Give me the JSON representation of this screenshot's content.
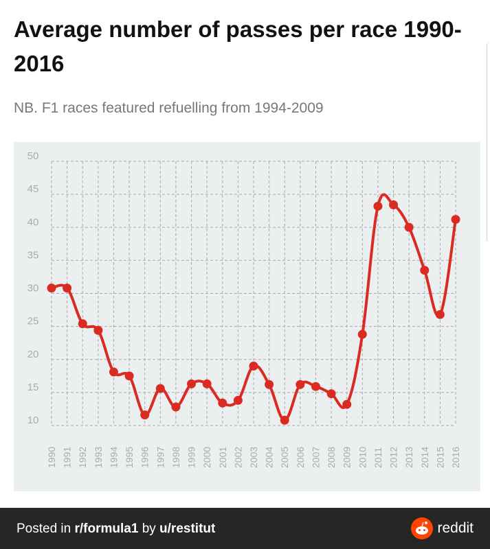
{
  "title": "Average number of passes per race 1990-2016",
  "subtitle": "NB. F1 races featured refuelling from 1994-2009",
  "footer": {
    "prefix": "Posted in ",
    "subreddit": "r/formula1",
    "by": " by ",
    "user": "u/restitut",
    "brand": "reddit"
  },
  "colors": {
    "line": "#d92b21",
    "panel": "#eceff0",
    "grid": "#a9a9a9",
    "footer": "#262626",
    "reddit": "#ff4500"
  },
  "chart_data": {
    "type": "line",
    "title": "Average number of passes per race 1990-2016",
    "xlabel": "",
    "ylabel": "",
    "ylim": [
      10,
      50
    ],
    "yticks": [
      10,
      15,
      20,
      25,
      30,
      35,
      40,
      45,
      50
    ],
    "grid": true,
    "x": [
      "1990",
      "1991",
      "1992",
      "1993",
      "1994",
      "1995",
      "1996",
      "1997",
      "1998",
      "1999",
      "2000",
      "2001",
      "2002",
      "2003",
      "2004",
      "2005",
      "2006",
      "2007",
      "2008",
      "2009",
      "2010",
      "2011",
      "2012",
      "2013",
      "2014",
      "2015",
      "2016"
    ],
    "series": [
      {
        "name": "Average passes per race",
        "values": [
          30.8,
          30.8,
          25.4,
          24.4,
          18.1,
          17.5,
          11.6,
          15.6,
          12.8,
          16.3,
          16.3,
          13.4,
          13.8,
          19.0,
          16.2,
          10.8,
          16.2,
          15.9,
          14.8,
          13.2,
          23.8,
          43.2,
          43.4,
          40.0,
          33.5,
          26.8,
          41.2
        ]
      }
    ]
  }
}
